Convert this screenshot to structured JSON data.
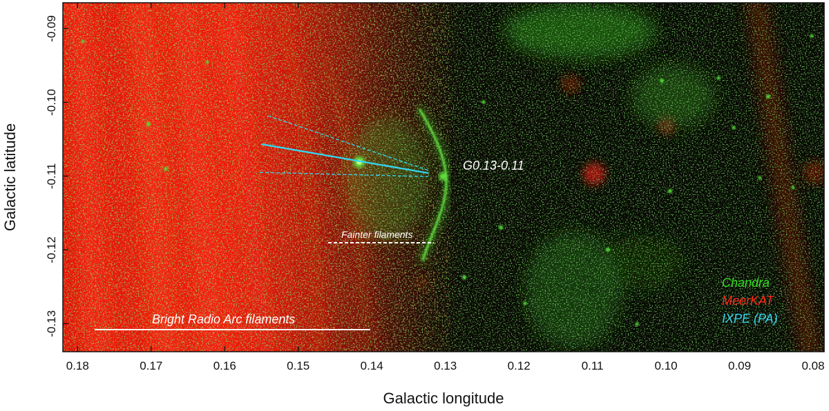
{
  "axes": {
    "xlabel": "Galactic longitude",
    "ylabel": "Galactic latitude",
    "xlim": [
      0.182,
      0.0785
    ],
    "ylim": [
      -0.1338,
      -0.0865
    ],
    "xticks": [
      "0.18",
      "0.17",
      "0.16",
      "0.15",
      "0.14",
      "0.13",
      "0.12",
      "0.11",
      "0.10",
      "0.09",
      "0.08"
    ],
    "xtick_values": [
      0.18,
      0.17,
      0.16,
      0.15,
      0.14,
      0.13,
      0.12,
      0.11,
      0.1,
      0.09,
      0.08
    ],
    "yticks": [
      "-0.09",
      "-0.10",
      "-0.11",
      "-0.12",
      "-0.13"
    ],
    "ytick_values": [
      -0.09,
      -0.1,
      -0.11,
      -0.12,
      -0.13
    ]
  },
  "annotations": {
    "source": "G0.13-0.11",
    "fainter": "Fainter filaments",
    "bright": "Bright Radio Arc filaments"
  },
  "legend": [
    {
      "label": "Chandra",
      "color": "#33dd22"
    },
    {
      "label": "MeerKAT",
      "color": "#ff2a1a"
    },
    {
      "label": "IXPE (PA)",
      "color": "#33d6f0"
    }
  ],
  "colors": {
    "radio": "#e8150a",
    "xray": "#35c61e",
    "polarization": "#33d6f0",
    "background": "#080a04"
  }
}
